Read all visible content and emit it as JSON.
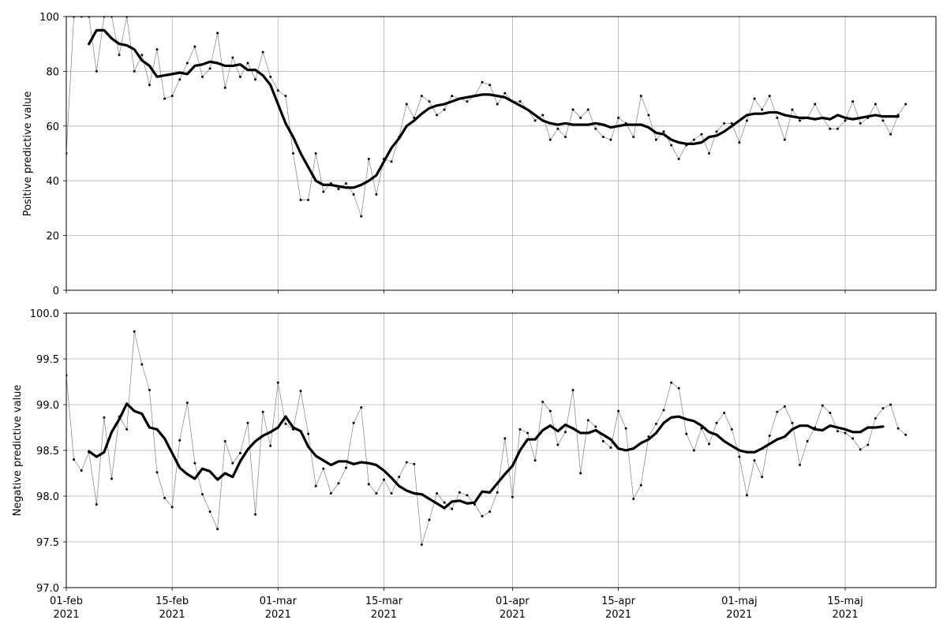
{
  "chart_data": [
    {
      "type": "line",
      "title": "",
      "xlabel": "",
      "ylabel": "Positive predictive value",
      "ylim": [
        0,
        100
      ],
      "yticks": [
        0,
        20,
        40,
        60,
        80,
        100
      ],
      "ytick_labels": [
        "0",
        "20",
        "40",
        "60",
        "80",
        "100"
      ],
      "xlim": [
        "2021-02-01",
        "2021-05-27"
      ],
      "xtick_dates": [
        "2021-02-01",
        "2021-02-15",
        "2021-03-01",
        "2021-03-15",
        "2021-04-01",
        "2021-04-15",
        "2021-05-01",
        "2021-05-15"
      ],
      "grid": true,
      "series": [
        {
          "style": "thin line with small markers",
          "color": "#808080",
          "start": "2021-02-01",
          "values": [
            50,
            100,
            100,
            100,
            80,
            100,
            100,
            86,
            100,
            80,
            86,
            75,
            88,
            70,
            71,
            77,
            83,
            89,
            78,
            81,
            94,
            74,
            85,
            78,
            83,
            77,
            87,
            78,
            73,
            71,
            50,
            33,
            33,
            50,
            36,
            39,
            37,
            39,
            35,
            27,
            48,
            35,
            48,
            47,
            56,
            68,
            63,
            71,
            69,
            64,
            66,
            71,
            70,
            69,
            71,
            76,
            75,
            68,
            72,
            69,
            69,
            66,
            62,
            64,
            55,
            59,
            56,
            66,
            63,
            66,
            59,
            56,
            55,
            63,
            61,
            56,
            71,
            64,
            55,
            58,
            53,
            48,
            53,
            55,
            57,
            50,
            58,
            61,
            61,
            54,
            62,
            70,
            66,
            71,
            63,
            55,
            66,
            62,
            63,
            68,
            63,
            59,
            59,
            62,
            69,
            61,
            63,
            68,
            62,
            57,
            64,
            68
          ]
        },
        {
          "style": "thick smoothed line",
          "color": "#000000",
          "start": "2021-02-04",
          "values": [
            90,
            95,
            95,
            92,
            90,
            89.5,
            88,
            84,
            82,
            78,
            78.5,
            79,
            79.5,
            79,
            82,
            82.5,
            83.5,
            83,
            82,
            82,
            82.5,
            80.5,
            80.5,
            78.5,
            75,
            68,
            61,
            56,
            50,
            45,
            40,
            38.5,
            38.5,
            38,
            37.5,
            37.5,
            38.5,
            40,
            42,
            47,
            52,
            55.5,
            60,
            62,
            64.5,
            66.5,
            67.5,
            68,
            69,
            70,
            70.5,
            71,
            71.5,
            71.5,
            71,
            70.5,
            69,
            67.5,
            66,
            64,
            62,
            61,
            60.5,
            61,
            60.5,
            60.5,
            60.5,
            61,
            60.5,
            59.5,
            60,
            60.5,
            60.5,
            60.5,
            59.5,
            57.5,
            57,
            55,
            54,
            53.5,
            53.5,
            54,
            56,
            56.5,
            58,
            60,
            62,
            64,
            64.5,
            64.5,
            65,
            65,
            64,
            63.5,
            63,
            63,
            62.5,
            63,
            62.5,
            64,
            63,
            62.5,
            63,
            63.5,
            64,
            63.5,
            63.5,
            63.5
          ]
        }
      ]
    },
    {
      "type": "line",
      "title": "",
      "xlabel": "",
      "ylabel": "Negative predictive value",
      "ylim": [
        97.0,
        100.0
      ],
      "yticks": [
        97.0,
        97.5,
        98.0,
        98.5,
        99.0,
        99.5,
        100.0
      ],
      "ytick_labels": [
        "97.0",
        "97.5",
        "98.0",
        "98.5",
        "99.0",
        "99.5",
        "100.0"
      ],
      "xlim": [
        "2021-02-01",
        "2021-05-27"
      ],
      "xtick_dates": [
        "2021-02-01",
        "2021-02-15",
        "2021-03-01",
        "2021-03-15",
        "2021-04-01",
        "2021-04-15",
        "2021-05-01",
        "2021-05-15"
      ],
      "grid": true,
      "series": [
        {
          "style": "thin line with small markers",
          "color": "#808080",
          "start": "2021-02-01",
          "values": [
            99.32,
            98.4,
            98.28,
            98.48,
            97.91,
            98.86,
            98.19,
            98.87,
            98.73,
            99.8,
            99.44,
            99.16,
            98.26,
            97.98,
            97.88,
            98.61,
            99.02,
            98.36,
            98.02,
            97.83,
            97.64,
            98.6,
            98.36,
            98.47,
            98.8,
            97.8,
            98.92,
            98.55,
            99.24,
            98.79,
            98.73,
            99.15,
            98.68,
            98.11,
            98.3,
            98.03,
            98.14,
            98.31,
            98.8,
            98.97,
            98.13,
            98.03,
            98.18,
            98.03,
            98.21,
            98.37,
            98.35,
            97.47,
            97.74,
            98.03,
            97.93,
            97.86,
            98.04,
            98.01,
            97.91,
            97.78,
            97.83,
            98.04,
            98.63,
            97.99,
            98.73,
            98.69,
            98.39,
            99.03,
            98.93,
            98.56,
            98.7,
            99.16,
            98.25,
            98.83,
            98.76,
            98.6,
            98.53,
            98.93,
            98.74,
            97.97,
            98.12,
            98.65,
            98.79,
            98.94,
            99.24,
            99.18,
            98.68,
            98.5,
            98.74,
            98.57,
            98.8,
            98.91,
            98.73,
            98.43,
            98.01,
            98.39,
            98.21,
            98.66,
            98.92,
            98.98,
            98.8,
            98.34,
            98.6,
            98.75,
            98.99,
            98.91,
            98.71,
            98.69,
            98.63,
            98.51,
            98.56,
            98.85,
            98.96,
            99.0,
            98.74,
            98.67
          ]
        },
        {
          "style": "thick smoothed line",
          "color": "#000000",
          "start": "2021-02-04",
          "values": [
            98.49,
            98.43,
            98.48,
            98.7,
            98.84,
            99.01,
            98.93,
            98.9,
            98.75,
            98.73,
            98.63,
            98.47,
            98.31,
            98.24,
            98.19,
            98.3,
            98.27,
            98.18,
            98.25,
            98.21,
            98.38,
            98.51,
            98.6,
            98.66,
            98.7,
            98.75,
            98.87,
            98.75,
            98.71,
            98.54,
            98.44,
            98.39,
            98.34,
            98.38,
            98.38,
            98.35,
            98.37,
            98.36,
            98.34,
            98.28,
            98.2,
            98.11,
            98.06,
            98.03,
            98.02,
            97.97,
            97.92,
            97.87,
            97.94,
            97.95,
            97.92,
            97.93,
            98.05,
            98.04,
            98.14,
            98.24,
            98.33,
            98.5,
            98.62,
            98.62,
            98.72,
            98.77,
            98.71,
            98.78,
            98.74,
            98.69,
            98.69,
            98.72,
            98.67,
            98.62,
            98.52,
            98.5,
            98.52,
            98.58,
            98.62,
            98.69,
            98.8,
            98.86,
            98.87,
            98.84,
            98.82,
            98.77,
            98.7,
            98.67,
            98.6,
            98.55,
            98.5,
            98.48,
            98.48,
            98.52,
            98.57,
            98.62,
            98.65,
            98.73,
            98.77,
            98.77,
            98.73,
            98.72,
            98.77,
            98.75,
            98.73,
            98.7,
            98.7,
            98.75,
            98.75,
            98.76
          ]
        }
      ]
    }
  ],
  "shared_x_tick_labels": [
    {
      "line1": "01-feb",
      "line2": "2021"
    },
    {
      "line1": "15-feb",
      "line2": "2021"
    },
    {
      "line1": "01-mar",
      "line2": "2021"
    },
    {
      "line1": "15-mar",
      "line2": "2021"
    },
    {
      "line1": "01-apr",
      "line2": "2021"
    },
    {
      "line1": "15-apr",
      "line2": "2021"
    },
    {
      "line1": "01-maj",
      "line2": "2021"
    },
    {
      "line1": "15-maj",
      "line2": "2021"
    }
  ],
  "colors": {
    "grid": "#b0b0b0",
    "frame": "#000000",
    "raw_series": "#808080",
    "smoothed_series": "#000000"
  }
}
